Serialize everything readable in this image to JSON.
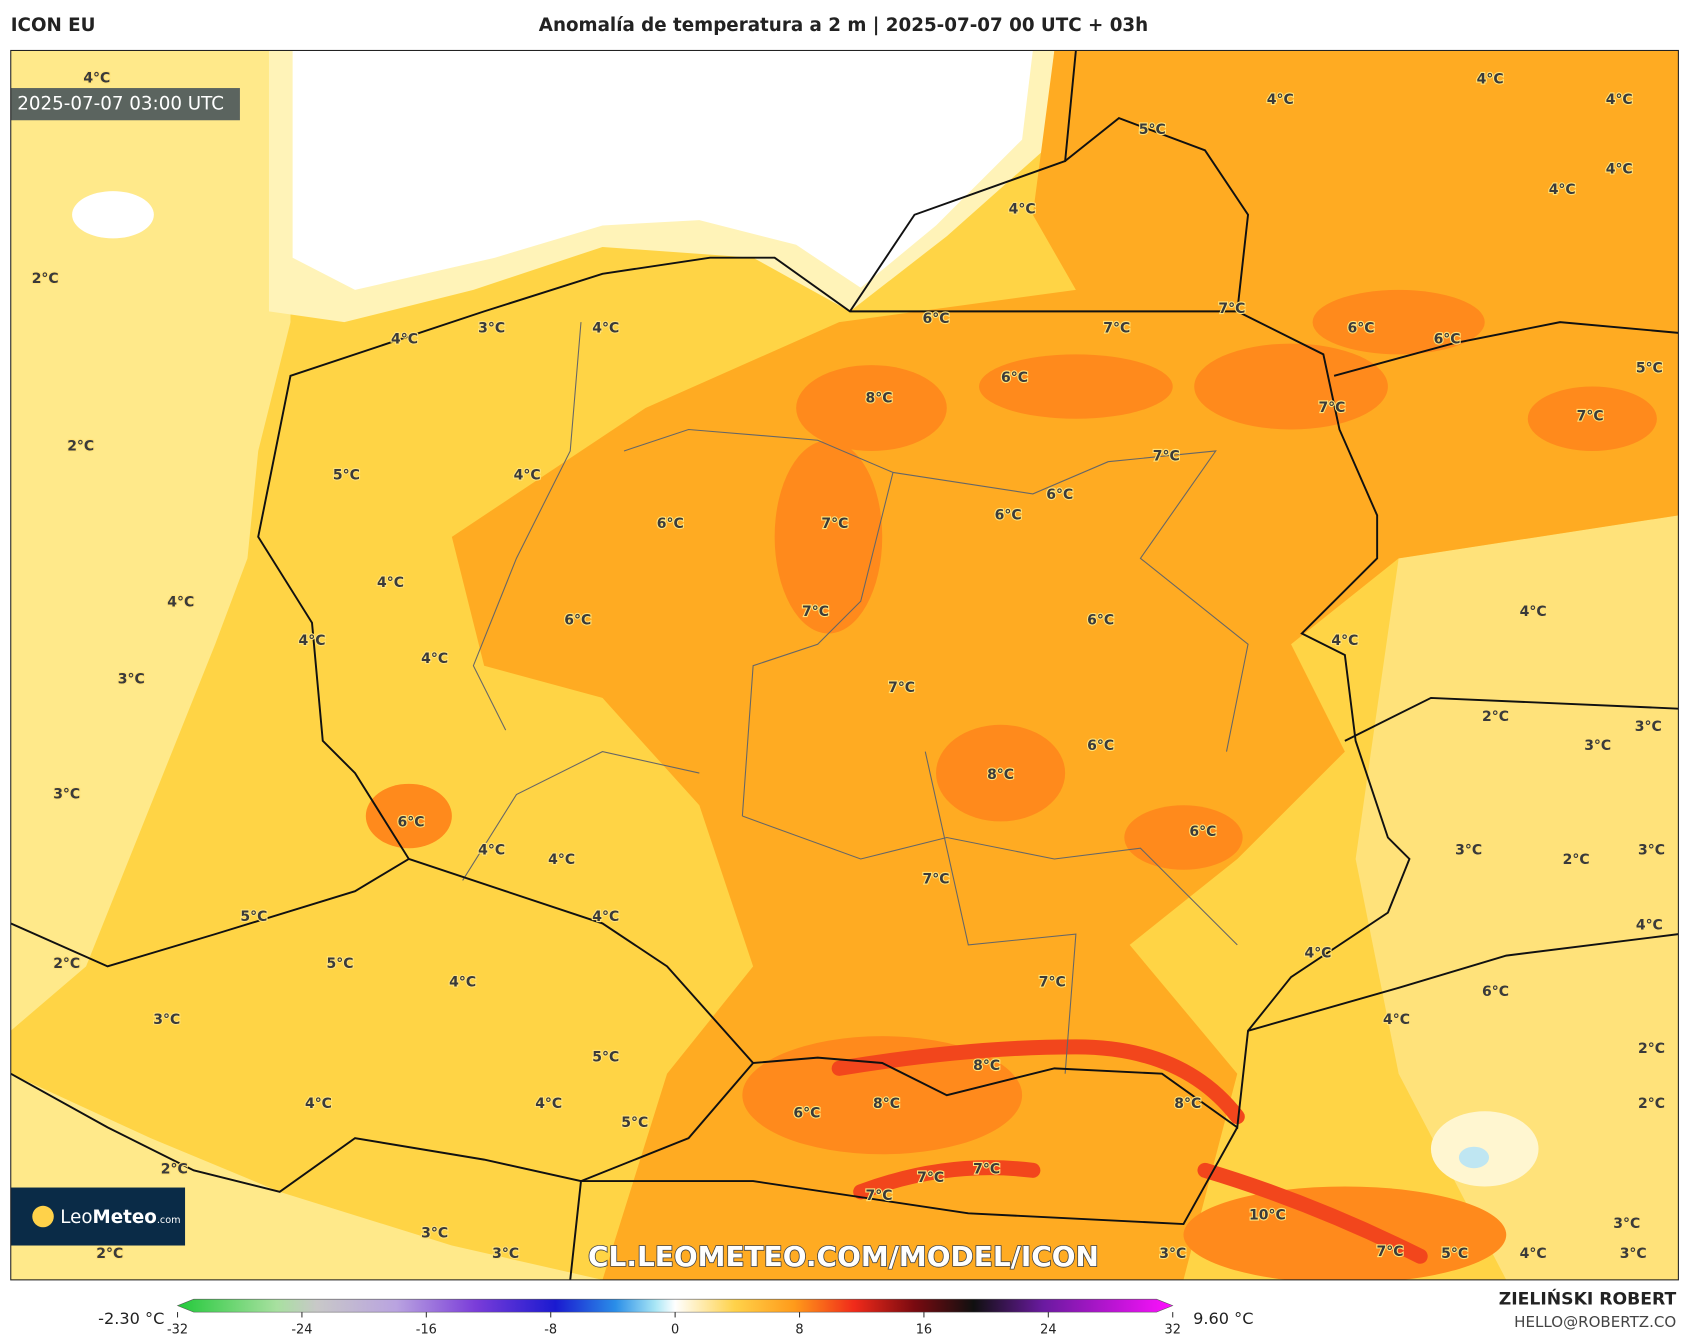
{
  "header": {
    "model": "ICON EU",
    "title": "Anomalía de temperatura a 2 m | 2025-07-07 00 UTC + 03h"
  },
  "map": {
    "valid_time": "2025-07-07 03:00 UTC",
    "labels": [
      "4°C",
      "2°C",
      "3°C",
      "4°C",
      "4°C",
      "2°C",
      "5°C",
      "4°C",
      "6°C",
      "7°C",
      "7°C",
      "6°C",
      "6°C",
      "8°C",
      "6°C",
      "7°C",
      "7°C",
      "5°C",
      "4°C",
      "5°C",
      "4°C",
      "4°C",
      "4°C",
      "4°C",
      "4°C",
      "7°C",
      "6°C",
      "6°C",
      "6°C",
      "7°C",
      "4°C",
      "4°C",
      "7°C",
      "6°C",
      "6°C",
      "4°C",
      "4°C",
      "4°C",
      "4°C",
      "3°C",
      "7°C",
      "2°C",
      "3°C",
      "3°C",
      "6°C",
      "8°C",
      "3°C",
      "6°C",
      "6°C",
      "4°C",
      "4°C",
      "3°C",
      "2°C",
      "3°C",
      "7°C",
      "5°C",
      "4°C",
      "4°C",
      "2°C",
      "5°C",
      "4°C",
      "4°C",
      "7°C",
      "6°C",
      "3°C",
      "4°C",
      "2°C",
      "5°C",
      "8°C",
      "4°C",
      "4°C",
      "8°C",
      "8°C",
      "6°C",
      "2°C",
      "5°C",
      "2°C",
      "7°C",
      "7°C",
      "7°C",
      "10°C",
      "3°C",
      "2°C",
      "3°C",
      "3°C",
      "7°C",
      "5°C",
      "4°C",
      "3°C",
      "3°C"
    ],
    "watermark": "CL.LEOMETEO.COM/MODEL/ICON",
    "logo": {
      "leo": "Leo",
      "meteo": "Meteo",
      "domain": ".com"
    }
  },
  "colorbar": {
    "min_label": "-2.30 °C",
    "max_label": "9.60 °C",
    "lim": [
      -32,
      32
    ],
    "ticks": [
      -32,
      -24,
      -16,
      -8,
      0,
      8,
      16,
      24,
      32
    ]
  },
  "footer": {
    "author": "ZIELIŃSKI ROBERT",
    "email": "HELLO@ROBERTZ.CO"
  }
}
